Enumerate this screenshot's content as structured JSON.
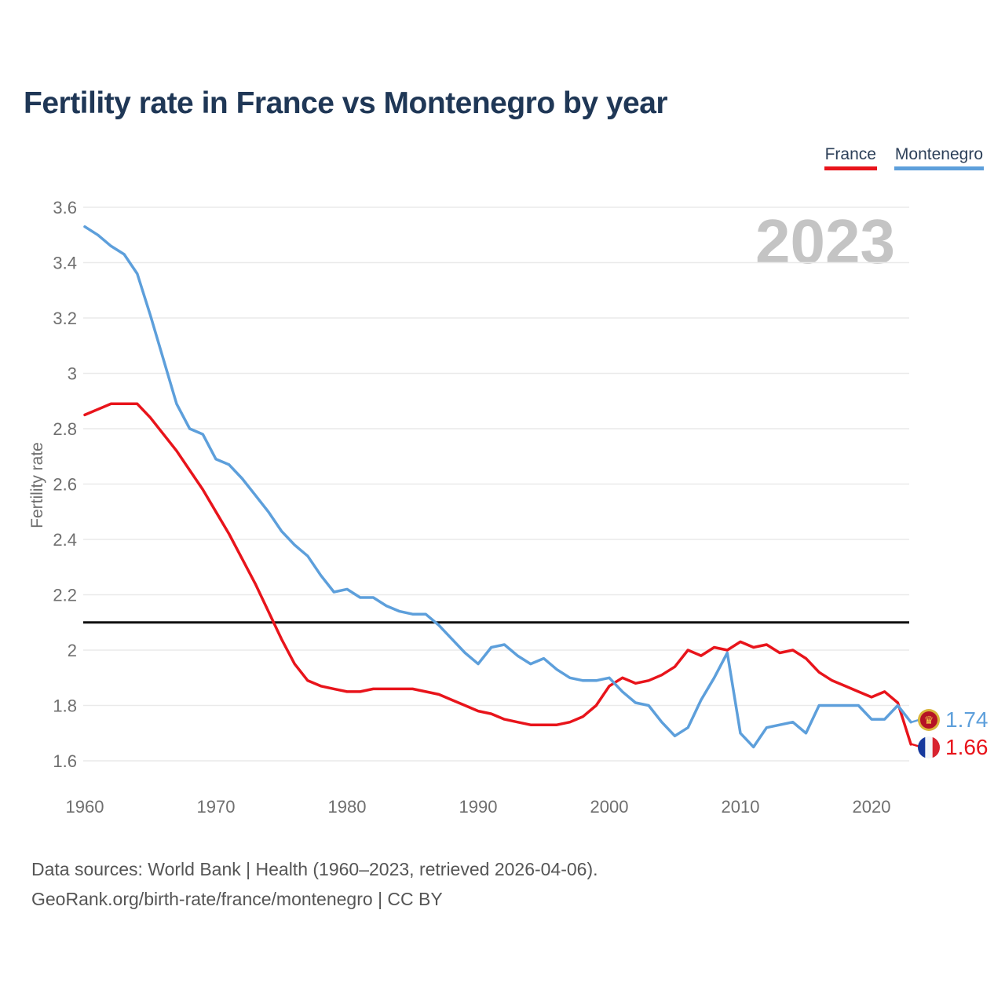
{
  "title": "Fertility rate in France vs Montenegro by year",
  "watermark": "2023",
  "ylabel": "Fertility rate",
  "legend": [
    {
      "label": "France",
      "color": "#e8141b"
    },
    {
      "label": "Montenegro",
      "color": "#5d9fdb"
    }
  ],
  "end_labels": [
    {
      "series": "Montenegro",
      "value": "1.74",
      "color": "#5d9fdb",
      "flag": "montenegro-flag"
    },
    {
      "series": "France",
      "value": "1.66",
      "color": "#e8141b",
      "flag": "france-flag"
    }
  ],
  "footer": {
    "line1": "Data sources: World Bank | Health (1960–2023, retrieved 2026-04-06).",
    "line2": "GeoRank.org/birth-rate/france/montenegro | CC BY"
  },
  "chart_data": {
    "type": "line",
    "title": "Fertility rate in France vs Montenegro by year",
    "xlabel": "",
    "ylabel": "Fertility rate",
    "xlim": [
      1960,
      2023
    ],
    "ylim": [
      1.55,
      3.65
    ],
    "grid": "horizontal-only",
    "legend_position": "top-right",
    "xticks": [
      1960,
      1970,
      1980,
      1990,
      2000,
      2010,
      2020
    ],
    "yticks": [
      {
        "value": 1.6,
        "label": "1.6"
      },
      {
        "value": 1.8,
        "label": "1.8"
      },
      {
        "value": 2.0,
        "label": "2"
      },
      {
        "value": 2.2,
        "label": "2.2"
      },
      {
        "value": 2.4,
        "label": "2.4"
      },
      {
        "value": 2.6,
        "label": "2.6"
      },
      {
        "value": 2.8,
        "label": "2.8"
      },
      {
        "value": 3.0,
        "label": "3"
      },
      {
        "value": 3.2,
        "label": "3.2"
      },
      {
        "value": 3.4,
        "label": "3.4"
      },
      {
        "value": 3.6,
        "label": "3.6"
      }
    ],
    "reference_line": {
      "value": 2.1,
      "color": "#0f0f0f",
      "name": "replacement-level"
    },
    "x": [
      1960,
      1961,
      1962,
      1963,
      1964,
      1965,
      1966,
      1967,
      1968,
      1969,
      1970,
      1971,
      1972,
      1973,
      1974,
      1975,
      1976,
      1977,
      1978,
      1979,
      1980,
      1981,
      1982,
      1983,
      1984,
      1985,
      1986,
      1987,
      1988,
      1989,
      1990,
      1991,
      1992,
      1993,
      1994,
      1995,
      1996,
      1997,
      1998,
      1999,
      2000,
      2001,
      2002,
      2003,
      2004,
      2005,
      2006,
      2007,
      2008,
      2009,
      2010,
      2011,
      2012,
      2013,
      2014,
      2015,
      2016,
      2017,
      2018,
      2019,
      2020,
      2021,
      2022,
      2023
    ],
    "series": [
      {
        "name": "France",
        "color": "#e8141b",
        "values": [
          2.85,
          2.87,
          2.89,
          2.89,
          2.89,
          2.84,
          2.78,
          2.72,
          2.65,
          2.58,
          2.5,
          2.42,
          2.33,
          2.24,
          2.14,
          2.04,
          1.95,
          1.89,
          1.87,
          1.86,
          1.85,
          1.85,
          1.86,
          1.86,
          1.86,
          1.86,
          1.85,
          1.84,
          1.82,
          1.8,
          1.78,
          1.77,
          1.75,
          1.74,
          1.73,
          1.73,
          1.73,
          1.74,
          1.76,
          1.8,
          1.87,
          1.9,
          1.88,
          1.89,
          1.91,
          1.94,
          2.0,
          1.98,
          2.01,
          2.0,
          2.03,
          2.01,
          2.02,
          1.99,
          2.0,
          1.97,
          1.92,
          1.89,
          1.87,
          1.85,
          1.83,
          1.85,
          1.81,
          1.66
        ]
      },
      {
        "name": "Montenegro",
        "color": "#5d9fdb",
        "values": [
          3.53,
          3.5,
          3.46,
          3.43,
          3.36,
          3.21,
          3.05,
          2.89,
          2.8,
          2.78,
          2.69,
          2.67,
          2.62,
          2.56,
          2.5,
          2.43,
          2.38,
          2.34,
          2.27,
          2.21,
          2.22,
          2.19,
          2.19,
          2.16,
          2.14,
          2.13,
          2.13,
          2.09,
          2.04,
          1.99,
          1.95,
          2.01,
          2.02,
          1.98,
          1.95,
          1.97,
          1.93,
          1.9,
          1.89,
          1.89,
          1.9,
          1.85,
          1.81,
          1.8,
          1.74,
          1.69,
          1.72,
          1.82,
          1.9,
          1.99,
          1.7,
          1.65,
          1.72,
          1.73,
          1.74,
          1.7,
          1.8,
          1.8,
          1.8,
          1.8,
          1.75,
          1.75,
          1.8,
          1.74
        ]
      }
    ]
  }
}
